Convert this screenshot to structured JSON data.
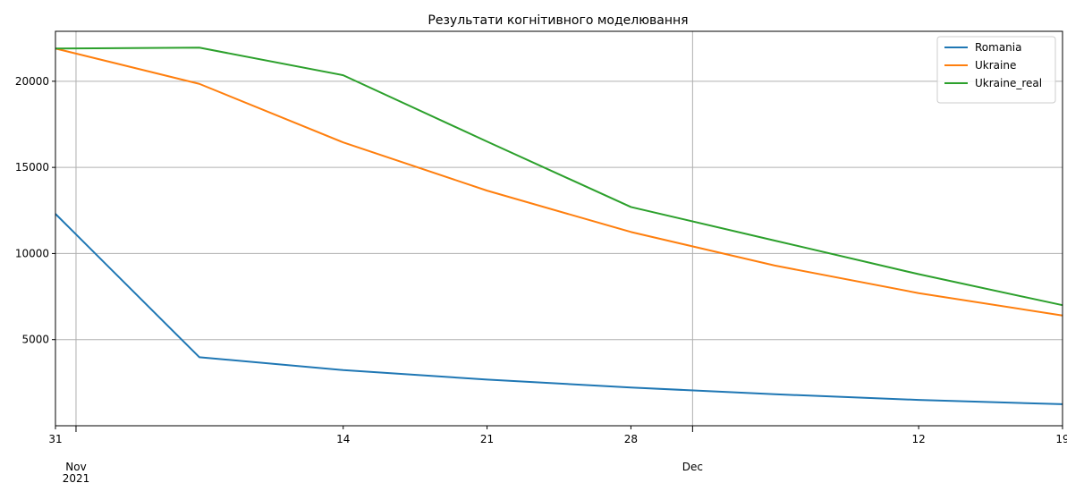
{
  "chart_data": {
    "type": "line",
    "title": "Результати когнітивного моделювання",
    "xlabel": "",
    "ylabel": "",
    "x": [
      "2021-10-31",
      "2021-11-07",
      "2021-11-14",
      "2021-11-21",
      "2021-11-28",
      "2021-12-05",
      "2021-12-12",
      "2021-12-19"
    ],
    "xlim": [
      "2021-10-31",
      "2021-12-19"
    ],
    "ylim": [
      0,
      22900
    ],
    "series": [
      {
        "name": "Romania",
        "color": "#1f77b4",
        "values": [
          12300,
          3980,
          3230,
          2680,
          2220,
          1830,
          1500,
          1250
        ]
      },
      {
        "name": "Ukraine",
        "color": "#ff7f0e",
        "values": [
          21900,
          19850,
          16450,
          13650,
          11250,
          9300,
          7700,
          6400
        ]
      },
      {
        "name": "Ukraine_real",
        "color": "#2ca02c",
        "values": [
          21900,
          21950,
          20350,
          16500,
          12700,
          10750,
          8800,
          7000
        ]
      }
    ],
    "y_ticks": [
      {
        "value": 5000,
        "label": "5000"
      },
      {
        "value": 10000,
        "label": "10000"
      },
      {
        "value": 15000,
        "label": "15000"
      },
      {
        "value": 20000,
        "label": "20000"
      }
    ],
    "x_ticks": [
      {
        "date": "2021-10-31",
        "label": "31",
        "grid": false
      },
      {
        "date": "2021-11-01",
        "label": "Nov\n2021",
        "grid": true,
        "major": true
      },
      {
        "date": "2021-11-14",
        "label": "14",
        "grid": false
      },
      {
        "date": "2021-11-21",
        "label": "21",
        "grid": false
      },
      {
        "date": "2021-11-28",
        "label": "28",
        "grid": false
      },
      {
        "date": "2021-12-01",
        "label": "Dec",
        "grid": true,
        "major": true
      },
      {
        "date": "2021-12-12",
        "label": "12",
        "grid": false
      },
      {
        "date": "2021-12-19",
        "label": "19",
        "grid": false
      }
    ],
    "grid": true,
    "legend_position": "top-right"
  }
}
